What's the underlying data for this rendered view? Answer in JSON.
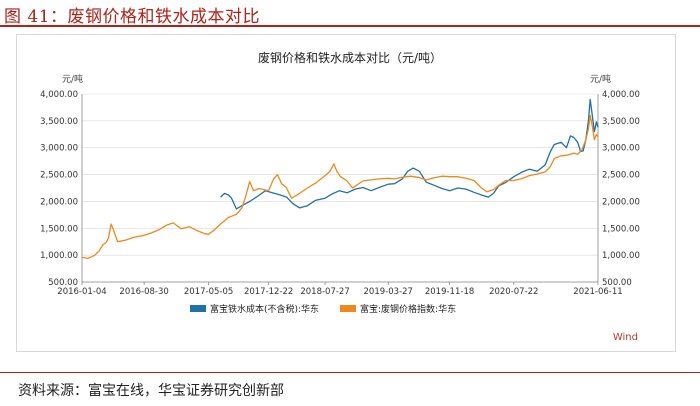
{
  "figure": {
    "title": "图 41：废钢价格和铁水成本对比",
    "source": "资料来源：富宝在线，华宝证券研究创新部",
    "watermark": "Wind"
  },
  "colors": {
    "accent": "#b02318",
    "series_blue": "#2171a8",
    "series_orange": "#f0891c",
    "watermark": "#c0392b",
    "axis": "#888888",
    "grid": "#d9d9d9"
  },
  "chart_data": {
    "type": "line",
    "title": "废钢价格和铁水成本对比（元/吨）",
    "y_unit_left": "元/吨",
    "y_unit_right": "元/吨",
    "ylim": [
      500,
      4000
    ],
    "yticks": [
      500,
      1000,
      1500,
      2000,
      2500,
      3000,
      3500,
      4000
    ],
    "ytick_labels": [
      "500.00",
      "1,000.00",
      "1,500.00",
      "2,000.00",
      "2,500.00",
      "3,000.00",
      "3,500.00",
      "4,000.00"
    ],
    "xlim": [
      "2016-01-04",
      "2021-06-11"
    ],
    "xticks": [
      "2016-01-04",
      "2016-08-30",
      "2017-05-05",
      "2017-12-22",
      "2018-07-27",
      "2019-03-27",
      "2019-11-18",
      "2020-07-22",
      "2021-06-11"
    ],
    "grid": true,
    "legend_position": "bottom",
    "series": [
      {
        "name": "富宝铁水成本(不含税):华东",
        "color": "#2171a8",
        "points": [
          [
            "2017-06-20",
            2080
          ],
          [
            "2017-07-05",
            2150
          ],
          [
            "2017-07-20",
            2120
          ],
          [
            "2017-08-01",
            2060
          ],
          [
            "2017-08-20",
            1860
          ],
          [
            "2017-09-10",
            1920
          ],
          [
            "2017-10-10",
            2000
          ],
          [
            "2017-11-05",
            2080
          ],
          [
            "2017-12-10",
            2200
          ],
          [
            "2018-01-05",
            2160
          ],
          [
            "2018-02-05",
            2120
          ],
          [
            "2018-03-01",
            2080
          ],
          [
            "2018-03-25",
            1960
          ],
          [
            "2018-04-20",
            1880
          ],
          [
            "2018-05-20",
            1920
          ],
          [
            "2018-06-20",
            2020
          ],
          [
            "2018-07-27",
            2060
          ],
          [
            "2018-08-20",
            2130
          ],
          [
            "2018-09-20",
            2200
          ],
          [
            "2018-10-20",
            2160
          ],
          [
            "2018-11-20",
            2230
          ],
          [
            "2018-12-20",
            2260
          ],
          [
            "2019-01-20",
            2200
          ],
          [
            "2019-02-20",
            2260
          ],
          [
            "2019-03-27",
            2320
          ],
          [
            "2019-04-20",
            2330
          ],
          [
            "2019-05-20",
            2420
          ],
          [
            "2019-06-10",
            2560
          ],
          [
            "2019-07-01",
            2620
          ],
          [
            "2019-07-25",
            2560
          ],
          [
            "2019-08-20",
            2360
          ],
          [
            "2019-09-20",
            2300
          ],
          [
            "2019-10-20",
            2240
          ],
          [
            "2019-11-18",
            2200
          ],
          [
            "2019-12-20",
            2250
          ],
          [
            "2020-01-20",
            2230
          ],
          [
            "2020-02-20",
            2170
          ],
          [
            "2020-03-20",
            2120
          ],
          [
            "2020-04-15",
            2080
          ],
          [
            "2020-05-05",
            2150
          ],
          [
            "2020-05-25",
            2290
          ],
          [
            "2020-06-20",
            2350
          ],
          [
            "2020-07-22",
            2460
          ],
          [
            "2020-08-20",
            2540
          ],
          [
            "2020-09-20",
            2600
          ],
          [
            "2020-10-20",
            2560
          ],
          [
            "2020-11-20",
            2680
          ],
          [
            "2020-12-10",
            2930
          ],
          [
            "2020-12-25",
            3060
          ],
          [
            "2021-01-20",
            3100
          ],
          [
            "2021-02-10",
            3000
          ],
          [
            "2021-02-25",
            3220
          ],
          [
            "2021-03-10",
            3190
          ],
          [
            "2021-03-25",
            3100
          ],
          [
            "2021-04-05",
            2930
          ],
          [
            "2021-04-15",
            2940
          ],
          [
            "2021-04-25",
            3150
          ],
          [
            "2021-05-05",
            3500
          ],
          [
            "2021-05-12",
            3900
          ],
          [
            "2021-05-20",
            3600
          ],
          [
            "2021-05-28",
            3300
          ],
          [
            "2021-06-05",
            3480
          ],
          [
            "2021-06-11",
            3380
          ]
        ]
      },
      {
        "name": "富宝:废钢价格指数:华东",
        "color": "#f0891c",
        "points": [
          [
            "2016-01-04",
            960
          ],
          [
            "2016-01-25",
            940
          ],
          [
            "2016-02-20",
            990
          ],
          [
            "2016-03-10",
            1080
          ],
          [
            "2016-03-25",
            1200
          ],
          [
            "2016-04-05",
            1230
          ],
          [
            "2016-04-15",
            1320
          ],
          [
            "2016-04-25",
            1580
          ],
          [
            "2016-05-05",
            1460
          ],
          [
            "2016-05-20",
            1250
          ],
          [
            "2016-06-20",
            1280
          ],
          [
            "2016-07-20",
            1330
          ],
          [
            "2016-08-30",
            1370
          ],
          [
            "2016-09-25",
            1410
          ],
          [
            "2016-10-25",
            1470
          ],
          [
            "2016-11-25",
            1560
          ],
          [
            "2016-12-20",
            1600
          ],
          [
            "2017-01-20",
            1490
          ],
          [
            "2017-02-20",
            1530
          ],
          [
            "2017-03-20",
            1460
          ],
          [
            "2017-04-20",
            1400
          ],
          [
            "2017-05-05",
            1390
          ],
          [
            "2017-05-25",
            1460
          ],
          [
            "2017-06-20",
            1580
          ],
          [
            "2017-07-20",
            1700
          ],
          [
            "2017-08-20",
            1760
          ],
          [
            "2017-09-10",
            1880
          ],
          [
            "2017-09-25",
            2100
          ],
          [
            "2017-10-10",
            2370
          ],
          [
            "2017-10-25",
            2200
          ],
          [
            "2017-11-15",
            2240
          ],
          [
            "2017-12-22",
            2200
          ],
          [
            "2018-01-10",
            2420
          ],
          [
            "2018-01-25",
            2500
          ],
          [
            "2018-02-10",
            2330
          ],
          [
            "2018-02-28",
            2260
          ],
          [
            "2018-03-20",
            2060
          ],
          [
            "2018-04-20",
            2150
          ],
          [
            "2018-05-20",
            2250
          ],
          [
            "2018-06-20",
            2340
          ],
          [
            "2018-07-27",
            2480
          ],
          [
            "2018-08-15",
            2560
          ],
          [
            "2018-08-30",
            2700
          ],
          [
            "2018-09-10",
            2560
          ],
          [
            "2018-09-25",
            2460
          ],
          [
            "2018-10-20",
            2380
          ],
          [
            "2018-11-10",
            2250
          ],
          [
            "2018-11-25",
            2300
          ],
          [
            "2018-12-20",
            2380
          ],
          [
            "2019-01-20",
            2400
          ],
          [
            "2019-02-20",
            2420
          ],
          [
            "2019-03-27",
            2430
          ],
          [
            "2019-04-20",
            2420
          ],
          [
            "2019-05-20",
            2450
          ],
          [
            "2019-06-20",
            2470
          ],
          [
            "2019-07-20",
            2450
          ],
          [
            "2019-08-20",
            2400
          ],
          [
            "2019-09-20",
            2440
          ],
          [
            "2019-10-20",
            2470
          ],
          [
            "2019-11-18",
            2460
          ],
          [
            "2019-12-20",
            2460
          ],
          [
            "2020-01-20",
            2430
          ],
          [
            "2020-02-20",
            2390
          ],
          [
            "2020-03-20",
            2250
          ],
          [
            "2020-04-10",
            2180
          ],
          [
            "2020-05-05",
            2220
          ],
          [
            "2020-05-25",
            2300
          ],
          [
            "2020-06-20",
            2390
          ],
          [
            "2020-07-22",
            2390
          ],
          [
            "2020-08-20",
            2420
          ],
          [
            "2020-09-20",
            2480
          ],
          [
            "2020-10-20",
            2510
          ],
          [
            "2020-11-20",
            2550
          ],
          [
            "2020-12-10",
            2650
          ],
          [
            "2020-12-25",
            2800
          ],
          [
            "2021-01-20",
            2850
          ],
          [
            "2021-02-10",
            2860
          ],
          [
            "2021-02-25",
            2880
          ],
          [
            "2021-03-10",
            2900
          ],
          [
            "2021-03-25",
            2880
          ],
          [
            "2021-04-10",
            2960
          ],
          [
            "2021-04-25",
            3150
          ],
          [
            "2021-05-05",
            3350
          ],
          [
            "2021-05-12",
            3600
          ],
          [
            "2021-05-20",
            3400
          ],
          [
            "2021-05-28",
            3150
          ],
          [
            "2021-06-05",
            3250
          ],
          [
            "2021-06-11",
            3200
          ]
        ]
      }
    ]
  }
}
